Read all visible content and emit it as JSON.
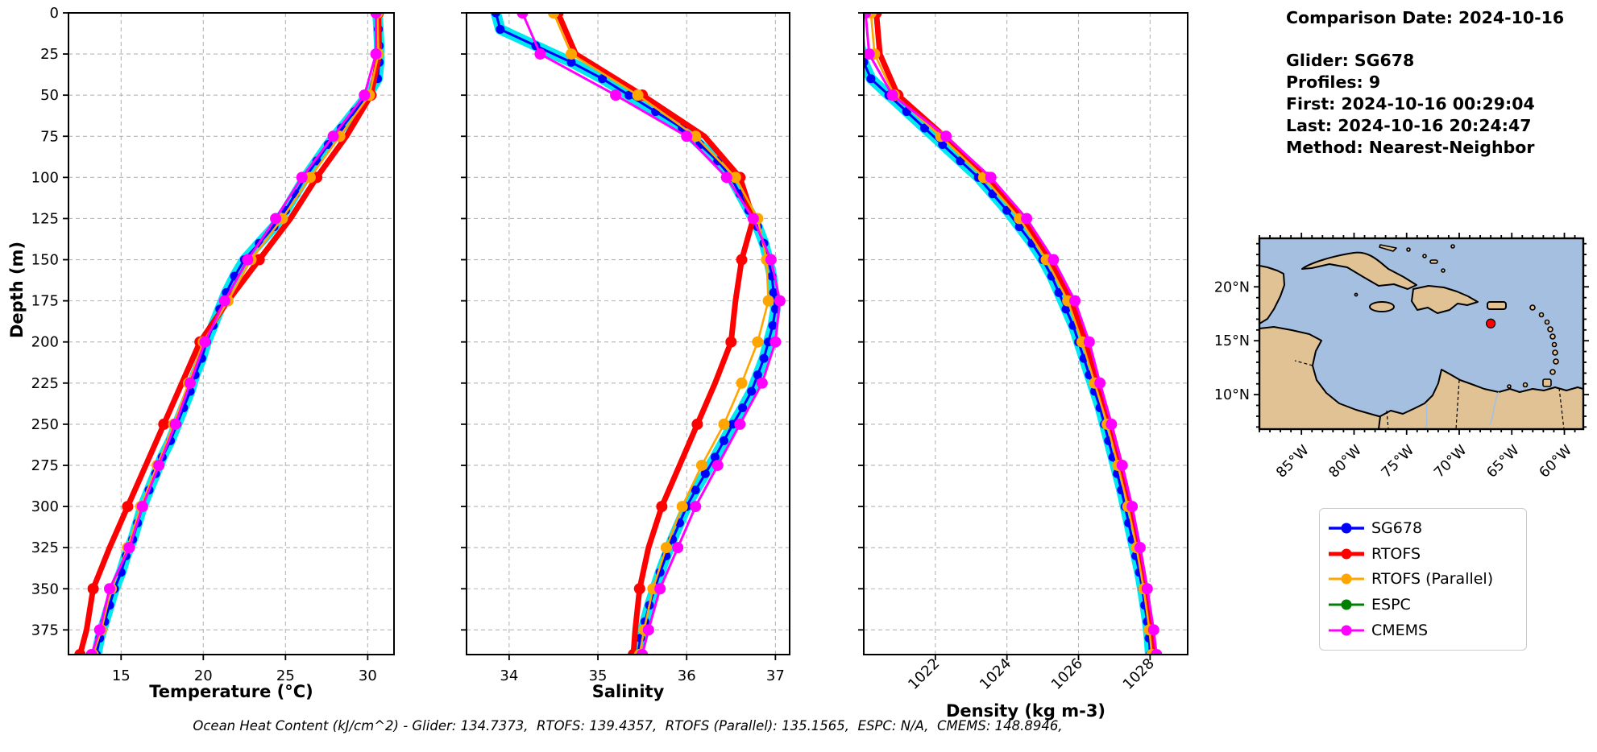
{
  "info_panel": {
    "comparison_date": "Comparison Date: 2024-10-16",
    "glider": "Glider: SG678",
    "profiles": "Profiles: 9",
    "first": "First: 2024-10-16 00:29:04",
    "last": "Last: 2024-10-16 20:24:47",
    "method": "Method: Nearest-Neighbor"
  },
  "footer": "Ocean Heat Content (kJ/cm^2) - Glider: 134.7373,  RTOFS: 139.4357,  RTOFS (Parallel): 135.1565,  ESPC: N/A,  CMEMS: 148.8946,",
  "legend": {
    "entries": [
      {
        "label": "SG678",
        "color": "#0000ff",
        "lw": 3.5
      },
      {
        "label": "RTOFS",
        "color": "#ff0000",
        "lw": 5
      },
      {
        "label": "RTOFS (Parallel)",
        "color": "#ffa500",
        "lw": 3
      },
      {
        "label": "ESPC",
        "color": "#008000",
        "lw": 3
      },
      {
        "label": "CMEMS",
        "color": "#ff00ff",
        "lw": 3
      }
    ]
  },
  "map": {
    "lat_labels": [
      "20°N",
      "15°N",
      "10°N"
    ],
    "lat_values": [
      20,
      15,
      10
    ],
    "lon_labels": [
      "85°W",
      "80°W",
      "75°W",
      "70°W",
      "65°W",
      "60°W"
    ],
    "lon_values": [
      -85,
      -80,
      -75,
      -70,
      -65,
      -60
    ],
    "extent": {
      "lon": [
        -89,
        -58.2
      ],
      "lat": [
        6.8,
        24.5
      ]
    },
    "marker": {
      "lon": -67,
      "lat": 16.6,
      "color": "#ff0000"
    },
    "ocean_color": "#a5bfe1",
    "land_color": "#e0c294"
  },
  "depth_grids": {
    "fine": [
      0,
      10,
      20,
      30,
      40,
      50,
      60,
      70,
      80,
      90,
      100,
      110,
      120,
      130,
      140,
      150,
      160,
      170,
      180,
      190,
      200,
      210,
      220,
      230,
      240,
      250,
      260,
      270,
      280,
      290,
      300,
      310,
      320,
      330,
      340,
      350,
      360,
      370,
      380,
      390
    ],
    "coarse": [
      0,
      25,
      50,
      75,
      100,
      125,
      150,
      175,
      200,
      225,
      250,
      275,
      300,
      325,
      350,
      375,
      390
    ]
  },
  "chart_data": [
    {
      "type": "line",
      "name": "temperature-profile",
      "xlabel": "Temperature (°C)",
      "ylabel": "Depth (m)",
      "xlim": [
        11.8,
        31.6
      ],
      "ylim": [
        0,
        390
      ],
      "xticks": [
        15,
        20,
        25,
        30
      ],
      "yticks": [
        0,
        25,
        50,
        75,
        100,
        125,
        150,
        175,
        200,
        225,
        250,
        275,
        300,
        325,
        350,
        375
      ],
      "grid": true,
      "series": [
        {
          "name": "Glider profiles",
          "color": "#00e8f0",
          "grid": "fine",
          "lw": 13,
          "band": true,
          "values_from": "SG678"
        },
        {
          "name": "SG678",
          "color": "#0000ff",
          "grid": "fine",
          "lw": 3,
          "marker": {
            "r": 5.5,
            "every": 1
          },
          "values": [
            30.6,
            30.65,
            30.7,
            30.7,
            30.6,
            30.0,
            29.2,
            28.4,
            27.6,
            26.9,
            26.2,
            25.6,
            25.0,
            24.3,
            23.4,
            22.5,
            21.9,
            21.4,
            21.0,
            20.6,
            20.2,
            19.9,
            19.5,
            19.2,
            18.8,
            18.4,
            18.0,
            17.5,
            17.1,
            16.7,
            16.3,
            16.0,
            15.7,
            15.3,
            15.0,
            14.6,
            14.3,
            14.0,
            13.7,
            13.5
          ]
        },
        {
          "name": "RTOFS",
          "color": "#ff0000",
          "grid": "coarse",
          "lw": 7,
          "marker": {
            "r": 7,
            "every": 2
          },
          "values": [
            30.65,
            30.7,
            30.2,
            28.7,
            26.9,
            25.3,
            23.4,
            21.5,
            19.8,
            18.7,
            17.6,
            16.5,
            15.4,
            14.3,
            13.3,
            12.9,
            12.5
          ]
        },
        {
          "name": "RTOFS (Parallel)",
          "color": "#ffa500",
          "grid": "coarse",
          "lw": 2.6,
          "marker": {
            "r": 7,
            "every": 1
          },
          "values": [
            30.6,
            30.65,
            30.1,
            28.3,
            26.5,
            24.8,
            22.9,
            21.5,
            20.0,
            19.1,
            18.2,
            17.2,
            16.2,
            15.4,
            14.4,
            13.8,
            13.3
          ]
        },
        {
          "name": "ESPC",
          "color": "#008000",
          "grid": "coarse",
          "lw": 3,
          "values": []
        },
        {
          "name": "CMEMS",
          "color": "#ff00ff",
          "grid": "coarse",
          "lw": 3,
          "marker": {
            "r": 7,
            "every": 1
          },
          "values": [
            30.5,
            30.5,
            29.8,
            27.9,
            26.0,
            24.4,
            22.7,
            21.3,
            20.1,
            19.2,
            18.3,
            17.3,
            16.3,
            15.5,
            14.3,
            13.7,
            13.2
          ]
        }
      ]
    },
    {
      "type": "line",
      "name": "salinity-profile",
      "xlabel": "Salinity",
      "ylabel": "Depth (m)",
      "xlim": [
        33.52,
        37.16
      ],
      "ylim": [
        0,
        390
      ],
      "xticks": [
        34,
        35,
        36,
        37
      ],
      "yticks": [
        0,
        25,
        50,
        75,
        100,
        125,
        150,
        175,
        200,
        225,
        250,
        275,
        300,
        325,
        350,
        375
      ],
      "grid": true,
      "series": [
        {
          "name": "Glider profiles",
          "color": "#00e8f0",
          "grid": "fine",
          "lw": 13,
          "band": true,
          "values_from": "SG678"
        },
        {
          "name": "SG678",
          "color": "#0000ff",
          "grid": "fine",
          "lw": 3,
          "marker": {
            "r": 5.5,
            "every": 1
          },
          "values": [
            33.85,
            33.9,
            34.3,
            34.7,
            35.05,
            35.35,
            35.65,
            35.95,
            36.15,
            36.35,
            36.5,
            36.6,
            36.7,
            36.8,
            36.87,
            36.92,
            36.96,
            36.98,
            37.0,
            36.97,
            36.92,
            36.87,
            36.8,
            36.73,
            36.63,
            36.52,
            36.42,
            36.32,
            36.21,
            36.1,
            36.0,
            35.92,
            35.84,
            35.77,
            35.7,
            35.64,
            35.58,
            35.53,
            35.48,
            35.45
          ]
        },
        {
          "name": "RTOFS",
          "color": "#ff0000",
          "grid": "coarse",
          "lw": 7,
          "marker": {
            "r": 7,
            "every": 2
          },
          "values": [
            34.55,
            34.75,
            35.5,
            36.2,
            36.6,
            36.75,
            36.62,
            36.55,
            36.5,
            36.32,
            36.12,
            35.92,
            35.72,
            35.57,
            35.47,
            35.42,
            35.4
          ]
        },
        {
          "name": "RTOFS (Parallel)",
          "color": "#ffa500",
          "grid": "coarse",
          "lw": 2.6,
          "marker": {
            "r": 7,
            "every": 1
          },
          "values": [
            34.5,
            34.7,
            35.45,
            36.1,
            36.55,
            36.8,
            36.9,
            36.92,
            36.8,
            36.62,
            36.42,
            36.17,
            35.95,
            35.77,
            35.62,
            35.52,
            35.47
          ]
        },
        {
          "name": "ESPC",
          "color": "#008000",
          "grid": "coarse",
          "lw": 3,
          "values": []
        },
        {
          "name": "CMEMS",
          "color": "#ff00ff",
          "grid": "coarse",
          "lw": 3,
          "marker": {
            "r": 7,
            "every": 1
          },
          "values": [
            34.15,
            34.35,
            35.2,
            36.0,
            36.45,
            36.75,
            36.95,
            37.05,
            37.0,
            36.85,
            36.6,
            36.35,
            36.1,
            35.9,
            35.7,
            35.57,
            35.5
          ]
        }
      ]
    },
    {
      "type": "line",
      "name": "density-profile",
      "xlabel": "Density (kg m-3)",
      "ylabel": "Depth (m)",
      "xlim": [
        1020.0,
        1029.05
      ],
      "ylim": [
        0,
        390
      ],
      "xticks": [
        1022,
        1024,
        1026,
        1028
      ],
      "xtick_rotation": 45,
      "yticks": [
        0,
        25,
        50,
        75,
        100,
        125,
        150,
        175,
        200,
        225,
        250,
        275,
        300,
        325,
        350,
        375
      ],
      "grid": true,
      "series": [
        {
          "name": "Glider profiles",
          "color": "#00e8f0",
          "grid": "fine",
          "lw": 13,
          "band": true,
          "values_from": "SG678"
        },
        {
          "name": "SG678",
          "color": "#0000ff",
          "grid": "fine",
          "lw": 3,
          "marker": {
            "r": 5.5,
            "every": 1
          },
          "values": [
            1019.8,
            1019.85,
            1019.9,
            1020.0,
            1020.2,
            1020.7,
            1021.2,
            1021.7,
            1022.2,
            1022.7,
            1023.2,
            1023.6,
            1024.0,
            1024.35,
            1024.7,
            1025.0,
            1025.25,
            1025.45,
            1025.65,
            1025.85,
            1026.0,
            1026.15,
            1026.3,
            1026.45,
            1026.6,
            1026.72,
            1026.84,
            1026.96,
            1027.08,
            1027.2,
            1027.3,
            1027.4,
            1027.5,
            1027.6,
            1027.7,
            1027.78,
            1027.85,
            1027.92,
            1027.97,
            1028.0
          ]
        },
        {
          "name": "RTOFS",
          "color": "#ff0000",
          "grid": "coarse",
          "lw": 7,
          "marker": {
            "r": 7,
            "every": 2
          },
          "values": [
            1020.35,
            1020.45,
            1020.95,
            1022.25,
            1023.45,
            1024.45,
            1025.2,
            1025.8,
            1026.2,
            1026.55,
            1026.88,
            1027.18,
            1027.45,
            1027.68,
            1027.88,
            1028.03,
            1028.1
          ]
        },
        {
          "name": "RTOFS (Parallel)",
          "color": "#ffa500",
          "grid": "coarse",
          "lw": 2.6,
          "marker": {
            "r": 7,
            "every": 1
          },
          "values": [
            1020.2,
            1020.3,
            1020.85,
            1022.15,
            1023.35,
            1024.35,
            1025.1,
            1025.7,
            1026.1,
            1026.45,
            1026.8,
            1027.1,
            1027.38,
            1027.62,
            1027.82,
            1027.98,
            1028.05
          ]
        },
        {
          "name": "ESPC",
          "color": "#008000",
          "grid": "coarse",
          "lw": 3,
          "values": []
        },
        {
          "name": "CMEMS",
          "color": "#ff00ff",
          "grid": "coarse",
          "lw": 3,
          "marker": {
            "r": 7,
            "every": 1
          },
          "values": [
            1020.05,
            1020.15,
            1020.8,
            1022.3,
            1023.55,
            1024.55,
            1025.3,
            1025.9,
            1026.3,
            1026.6,
            1026.92,
            1027.22,
            1027.5,
            1027.72,
            1027.92,
            1028.1,
            1028.18
          ]
        }
      ]
    }
  ]
}
